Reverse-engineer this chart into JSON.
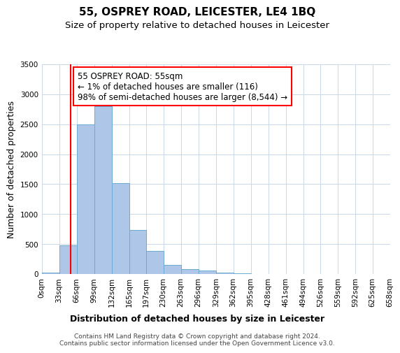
{
  "title": "55, OSPREY ROAD, LEICESTER, LE4 1BQ",
  "subtitle": "Size of property relative to detached houses in Leicester",
  "xlabel": "Distribution of detached houses by size in Leicester",
  "ylabel": "Number of detached properties",
  "bar_color": "#aec6e8",
  "bar_edge_color": "#6aaad4",
  "bin_edges": [
    0,
    33,
    66,
    99,
    132,
    165,
    197,
    230,
    263,
    296,
    329,
    362,
    395,
    428,
    461,
    494,
    526,
    559,
    592,
    625,
    658
  ],
  "bar_heights": [
    25,
    480,
    2500,
    2800,
    1520,
    740,
    390,
    150,
    80,
    55,
    20,
    10,
    5,
    2,
    1,
    0,
    0,
    0,
    0,
    0
  ],
  "tick_labels": [
    "0sqm",
    "33sqm",
    "66sqm",
    "99sqm",
    "132sqm",
    "165sqm",
    "197sqm",
    "230sqm",
    "263sqm",
    "296sqm",
    "329sqm",
    "362sqm",
    "395sqm",
    "428sqm",
    "461sqm",
    "494sqm",
    "526sqm",
    "559sqm",
    "592sqm",
    "625sqm",
    "658sqm"
  ],
  "ylim": [
    0,
    3500
  ],
  "xlim": [
    0,
    658
  ],
  "red_line_x": 55,
  "annotation_text": "55 OSPREY ROAD: 55sqm\n← 1% of detached houses are smaller (116)\n98% of semi-detached houses are larger (8,544) →",
  "footer_line1": "Contains HM Land Registry data © Crown copyright and database right 2024.",
  "footer_line2": "Contains public sector information licensed under the Open Government Licence v3.0.",
  "background_color": "#ffffff",
  "grid_color": "#c8d8e8",
  "title_fontsize": 11,
  "subtitle_fontsize": 9.5,
  "label_fontsize": 9,
  "tick_fontsize": 7.5,
  "footer_fontsize": 6.5,
  "annotation_fontsize": 8.5
}
